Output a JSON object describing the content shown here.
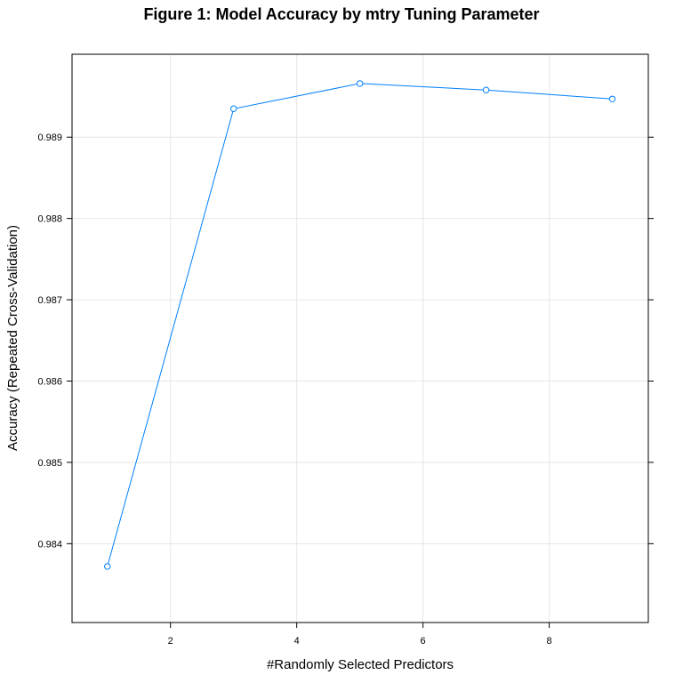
{
  "chart_data": {
    "type": "line",
    "title": "Figure 1: Model Accuracy by mtry Tuning Parameter",
    "xlabel": "#Randomly Selected Predictors",
    "ylabel": "Accuracy (Repeated Cross-Validation)",
    "x": [
      1,
      3,
      5,
      7,
      9
    ],
    "series": [
      {
        "values": [
          0.98372,
          0.98935,
          0.98966,
          0.98958,
          0.98947
        ],
        "color": "#0080ff",
        "marker": "open-circle"
      }
    ],
    "xlim": [
      0.44,
      9.57
    ],
    "ylim": [
      0.98303,
      0.99002
    ],
    "xticks": [
      2,
      4,
      6,
      8
    ],
    "xtick_labels": [
      "2",
      "4",
      "6",
      "8"
    ],
    "yticks": [
      0.984,
      0.985,
      0.986,
      0.987,
      0.988,
      0.989
    ],
    "ytick_labels": [
      "0.984",
      "0.985",
      "0.986",
      "0.987",
      "0.988",
      "0.989"
    ],
    "grid": true,
    "grid_color": "#e6e6e6",
    "line_color": "#0080ff"
  }
}
